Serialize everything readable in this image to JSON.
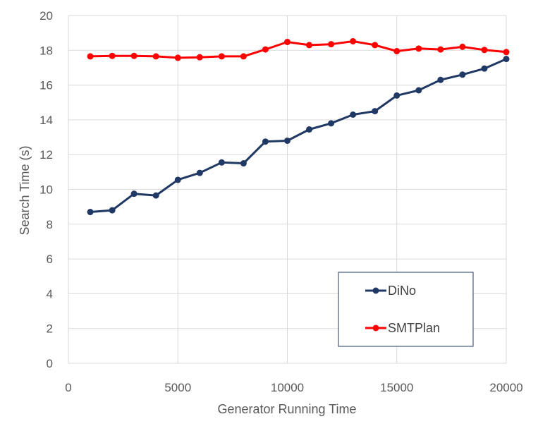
{
  "chart_data": {
    "type": "line",
    "title": "",
    "xlabel": "Generator Running Time",
    "ylabel": "Search Time (s)",
    "xlim": [
      0,
      20000
    ],
    "ylim": [
      0,
      20
    ],
    "xticks": [
      "0",
      "5000",
      "10000",
      "15000",
      "20000"
    ],
    "yticks": [
      "0",
      "2",
      "4",
      "6",
      "8",
      "10",
      "12",
      "14",
      "16",
      "18",
      "20"
    ],
    "grid": true,
    "legend_position": "bottom-right",
    "x": [
      1000,
      2000,
      3000,
      4000,
      5000,
      6000,
      7000,
      8000,
      9000,
      10000,
      11000,
      12000,
      13000,
      14000,
      15000,
      16000,
      17000,
      18000,
      19000,
      20000
    ],
    "series": [
      {
        "name": "DiNo",
        "color": "#203864",
        "values": [
          8.7,
          8.8,
          9.75,
          9.65,
          10.55,
          10.95,
          11.55,
          11.5,
          12.75,
          12.8,
          13.45,
          13.8,
          14.3,
          14.5,
          15.4,
          15.7,
          16.3,
          16.6,
          16.95,
          17.5
        ]
      },
      {
        "name": "SMTPlan",
        "color": "#ff0000",
        "values": [
          17.65,
          17.68,
          17.68,
          17.65,
          17.57,
          17.6,
          17.65,
          17.65,
          18.05,
          18.48,
          18.3,
          18.35,
          18.52,
          18.3,
          17.95,
          18.1,
          18.05,
          18.2,
          18.02,
          17.9
        ]
      }
    ]
  }
}
